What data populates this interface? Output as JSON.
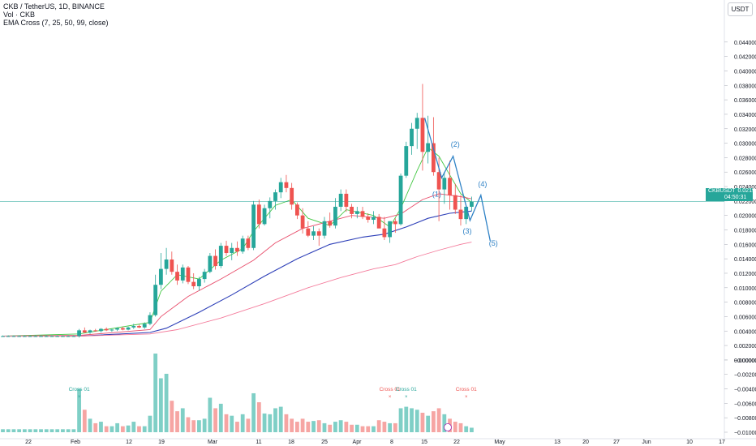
{
  "header": {
    "symbol_line": "CKB / TetherUS, 1D, BINANCE",
    "vol_line": "Vol · CKB",
    "ema_line": "EMA Cross (7, 25, 50, 99, close)"
  },
  "currency_button": "USDT",
  "price_badge": {
    "symbol": "CKBUSDT",
    "price": "0.021912",
    "countdown": "04:50:31"
  },
  "colors": {
    "up": "#26a69a",
    "down": "#ef5350",
    "ema7": "#43c743",
    "ema25": "#e84d6b",
    "ema50": "#2d3fb8",
    "ema99": "#f47b9b",
    "wave": "#2f82c6",
    "current_line": "#26a69a"
  },
  "chart_data": {
    "type": "candlestick",
    "symbol": "CKB / TetherUS",
    "interval": "1D",
    "exchange": "BINANCE",
    "y_axis": {
      "min": -0.01,
      "max": 0.046,
      "ticks": [
        "0.044000",
        "0.042000",
        "0.040000",
        "0.038000",
        "0.036000",
        "0.034000",
        "0.032000",
        "0.030000",
        "0.028000",
        "0.026000",
        "0.024000",
        "0.022000",
        "0.020000",
        "0.018000",
        "0.016000",
        "0.014000",
        "0.012000",
        "0.010000",
        "0.008000",
        "0.006000",
        "0.004000",
        "0.002000",
        "0.000000",
        "−0.000000",
        "−0.002000",
        "−0.004000",
        "−0.006000",
        "−0.008000",
        "−0.010000"
      ]
    },
    "x_axis": {
      "labels": [
        "22",
        "Feb",
        "12",
        "19",
        "Mar",
        "11",
        "18",
        "25",
        "Apr",
        "8",
        "15",
        "22",
        "May",
        "13",
        "20",
        "27",
        "Jun",
        "10",
        "17"
      ]
    },
    "current_price": 0.021912,
    "candles": [
      [
        0.0033,
        0.0034,
        0.0032,
        0.0033
      ],
      [
        0.0033,
        0.0034,
        0.0032,
        0.0033
      ],
      [
        0.0033,
        0.0034,
        0.0032,
        0.0033
      ],
      [
        0.0033,
        0.0034,
        0.0032,
        0.0033
      ],
      [
        0.0033,
        0.0034,
        0.0032,
        0.0033
      ],
      [
        0.0033,
        0.0034,
        0.0032,
        0.0033
      ],
      [
        0.0033,
        0.0034,
        0.0032,
        0.0033
      ],
      [
        0.0033,
        0.0034,
        0.0032,
        0.0033
      ],
      [
        0.0033,
        0.0034,
        0.0032,
        0.0033
      ],
      [
        0.0033,
        0.0034,
        0.0032,
        0.0033
      ],
      [
        0.0033,
        0.0034,
        0.0032,
        0.0033
      ],
      [
        0.0033,
        0.0034,
        0.0032,
        0.0033
      ],
      [
        0.0033,
        0.0034,
        0.0032,
        0.0033
      ],
      [
        0.0033,
        0.0034,
        0.0032,
        0.0033
      ],
      [
        0.0033,
        0.0043,
        0.0031,
        0.0041
      ],
      [
        0.0041,
        0.0045,
        0.0037,
        0.0038
      ],
      [
        0.0038,
        0.0042,
        0.0036,
        0.0041
      ],
      [
        0.0041,
        0.0043,
        0.0039,
        0.004
      ],
      [
        0.004,
        0.0044,
        0.0038,
        0.0043
      ],
      [
        0.0043,
        0.0045,
        0.004,
        0.0041
      ],
      [
        0.0041,
        0.0043,
        0.0039,
        0.0042
      ],
      [
        0.0042,
        0.0045,
        0.004,
        0.0044
      ],
      [
        0.0044,
        0.0046,
        0.0041,
        0.0042
      ],
      [
        0.0042,
        0.0046,
        0.0041,
        0.0045
      ],
      [
        0.0045,
        0.005,
        0.0043,
        0.0047
      ],
      [
        0.0047,
        0.0049,
        0.0044,
        0.0045
      ],
      [
        0.0045,
        0.0052,
        0.0043,
        0.005
      ],
      [
        0.005,
        0.0066,
        0.0048,
        0.0062
      ],
      [
        0.0062,
        0.0118,
        0.006,
        0.0104
      ],
      [
        0.0104,
        0.0148,
        0.0098,
        0.0126
      ],
      [
        0.0126,
        0.0155,
        0.0118,
        0.0139
      ],
      [
        0.0139,
        0.015,
        0.0118,
        0.0122
      ],
      [
        0.0122,
        0.0132,
        0.0104,
        0.011
      ],
      [
        0.011,
        0.0132,
        0.0106,
        0.0128
      ],
      [
        0.0128,
        0.013,
        0.0105,
        0.0108
      ],
      [
        0.0108,
        0.012,
        0.0098,
        0.0102
      ],
      [
        0.0102,
        0.0115,
        0.0096,
        0.0112
      ],
      [
        0.0112,
        0.0126,
        0.0107,
        0.0122
      ],
      [
        0.0122,
        0.0148,
        0.012,
        0.0144
      ],
      [
        0.0144,
        0.0153,
        0.0125,
        0.013
      ],
      [
        0.013,
        0.0162,
        0.0127,
        0.0158
      ],
      [
        0.0158,
        0.0165,
        0.0144,
        0.0148
      ],
      [
        0.0148,
        0.0162,
        0.0138,
        0.0155
      ],
      [
        0.0155,
        0.0164,
        0.0144,
        0.015
      ],
      [
        0.015,
        0.0172,
        0.0147,
        0.0168
      ],
      [
        0.0168,
        0.0172,
        0.0152,
        0.0155
      ],
      [
        0.0155,
        0.022,
        0.0152,
        0.0215
      ],
      [
        0.0215,
        0.0222,
        0.0182,
        0.0188
      ],
      [
        0.0188,
        0.0215,
        0.0186,
        0.021
      ],
      [
        0.021,
        0.0225,
        0.0196,
        0.022
      ],
      [
        0.022,
        0.0236,
        0.0208,
        0.0232
      ],
      [
        0.0232,
        0.0252,
        0.0224,
        0.0246
      ],
      [
        0.0246,
        0.0256,
        0.0232,
        0.0238
      ],
      [
        0.0238,
        0.0245,
        0.0208,
        0.0215
      ],
      [
        0.0215,
        0.0218,
        0.0195,
        0.02
      ],
      [
        0.02,
        0.021,
        0.0175,
        0.0182
      ],
      [
        0.0182,
        0.0192,
        0.017,
        0.0172
      ],
      [
        0.0172,
        0.0185,
        0.0166,
        0.0178
      ],
      [
        0.0178,
        0.0182,
        0.0158,
        0.0172
      ],
      [
        0.0172,
        0.0198,
        0.0168,
        0.0192
      ],
      [
        0.0192,
        0.0204,
        0.0183,
        0.0186
      ],
      [
        0.0186,
        0.0224,
        0.0182,
        0.0212
      ],
      [
        0.0212,
        0.0236,
        0.0206,
        0.023
      ],
      [
        0.023,
        0.0236,
        0.0205,
        0.0212
      ],
      [
        0.0212,
        0.0216,
        0.0196,
        0.0202
      ],
      [
        0.0202,
        0.0212,
        0.0196,
        0.0206
      ],
      [
        0.0206,
        0.0212,
        0.0195,
        0.0198
      ],
      [
        0.0198,
        0.0203,
        0.019,
        0.0194
      ],
      [
        0.0194,
        0.0206,
        0.0188,
        0.0198
      ],
      [
        0.0198,
        0.0202,
        0.0186,
        0.0182
      ],
      [
        0.0182,
        0.0198,
        0.0166,
        0.017
      ],
      [
        0.017,
        0.0192,
        0.0162,
        0.0192
      ],
      [
        0.0192,
        0.0196,
        0.0176,
        0.0188
      ],
      [
        0.0188,
        0.0258,
        0.0186,
        0.0255
      ],
      [
        0.0255,
        0.0302,
        0.0252,
        0.0296
      ],
      [
        0.0296,
        0.0328,
        0.0284,
        0.032
      ],
      [
        0.032,
        0.0342,
        0.0292,
        0.0335
      ],
      [
        0.0335,
        0.0382,
        0.0262,
        0.0288
      ],
      [
        0.0288,
        0.0338,
        0.0272,
        0.03
      ],
      [
        0.03,
        0.0336,
        0.0255,
        0.026
      ],
      [
        0.026,
        0.028,
        0.0192,
        0.0236
      ],
      [
        0.0236,
        0.026,
        0.0216,
        0.0252
      ],
      [
        0.0252,
        0.0276,
        0.0208,
        0.0228
      ],
      [
        0.0228,
        0.0244,
        0.0202,
        0.0208
      ],
      [
        0.0208,
        0.0228,
        0.0186,
        0.0195
      ],
      [
        0.0195,
        0.0213,
        0.0188,
        0.0212
      ],
      [
        0.0212,
        0.0226,
        0.0206,
        0.0219
      ]
    ],
    "volume_scale": {
      "top": "-0.004000",
      "note": "volume bars share the lower price scale"
    },
    "volume": [
      [
        0.0004,
        "u"
      ],
      [
        0.0004,
        "u"
      ],
      [
        0.0004,
        "u"
      ],
      [
        0.0004,
        "u"
      ],
      [
        0.0004,
        "u"
      ],
      [
        0.0004,
        "u"
      ],
      [
        0.0004,
        "u"
      ],
      [
        0.0004,
        "u"
      ],
      [
        0.0004,
        "u"
      ],
      [
        0.0004,
        "u"
      ],
      [
        0.0004,
        "u"
      ],
      [
        0.0004,
        "u"
      ],
      [
        0.0004,
        "u"
      ],
      [
        0.0004,
        "u"
      ],
      [
        0.0058,
        "u"
      ],
      [
        0.003,
        "d"
      ],
      [
        0.0018,
        "u"
      ],
      [
        0.0012,
        "d"
      ],
      [
        0.0014,
        "u"
      ],
      [
        0.0008,
        "d"
      ],
      [
        0.0008,
        "u"
      ],
      [
        0.0012,
        "u"
      ],
      [
        0.0008,
        "d"
      ],
      [
        0.0009,
        "u"
      ],
      [
        0.0014,
        "u"
      ],
      [
        0.0008,
        "d"
      ],
      [
        0.0008,
        "u"
      ],
      [
        0.0022,
        "u"
      ],
      [
        0.0105,
        "u"
      ],
      [
        0.0072,
        "u"
      ],
      [
        0.0078,
        "u"
      ],
      [
        0.0042,
        "d"
      ],
      [
        0.0028,
        "d"
      ],
      [
        0.0032,
        "u"
      ],
      [
        0.002,
        "d"
      ],
      [
        0.0016,
        "d"
      ],
      [
        0.0016,
        "u"
      ],
      [
        0.0018,
        "u"
      ],
      [
        0.0046,
        "u"
      ],
      [
        0.0032,
        "d"
      ],
      [
        0.0038,
        "u"
      ],
      [
        0.0024,
        "d"
      ],
      [
        0.0022,
        "u"
      ],
      [
        0.0014,
        "d"
      ],
      [
        0.0024,
        "u"
      ],
      [
        0.0018,
        "d"
      ],
      [
        0.0052,
        "u"
      ],
      [
        0.004,
        "d"
      ],
      [
        0.0025,
        "u"
      ],
      [
        0.0024,
        "u"
      ],
      [
        0.0032,
        "u"
      ],
      [
        0.0034,
        "u"
      ],
      [
        0.0024,
        "d"
      ],
      [
        0.0018,
        "d"
      ],
      [
        0.0014,
        "d"
      ],
      [
        0.0018,
        "d"
      ],
      [
        0.0014,
        "d"
      ],
      [
        0.0015,
        "u"
      ],
      [
        0.0016,
        "d"
      ],
      [
        0.0012,
        "u"
      ],
      [
        0.001,
        "d"
      ],
      [
        0.0014,
        "u"
      ],
      [
        0.0016,
        "u"
      ],
      [
        0.0014,
        "d"
      ],
      [
        0.001,
        "d"
      ],
      [
        0.001,
        "u"
      ],
      [
        0.0008,
        "d"
      ],
      [
        0.0008,
        "d"
      ],
      [
        0.0008,
        "u"
      ],
      [
        0.0016,
        "d"
      ],
      [
        0.0014,
        "d"
      ],
      [
        0.0012,
        "u"
      ],
      [
        0.0012,
        "d"
      ],
      [
        0.0032,
        "u"
      ],
      [
        0.0034,
        "u"
      ],
      [
        0.0032,
        "u"
      ],
      [
        0.003,
        "u"
      ],
      [
        0.0026,
        "d"
      ],
      [
        0.0022,
        "u"
      ],
      [
        0.0028,
        "d"
      ],
      [
        0.0032,
        "d"
      ],
      [
        0.0024,
        "u"
      ],
      [
        0.0018,
        "d"
      ],
      [
        0.0014,
        "d"
      ],
      [
        0.0012,
        "d"
      ],
      [
        0.0008,
        "u"
      ],
      [
        0.0006,
        "u"
      ]
    ],
    "ema_series": [
      {
        "name": "EMA 7",
        "points": [
          [
            0,
            0.0033
          ],
          [
            14,
            0.0036
          ],
          [
            27,
            0.0052
          ],
          [
            29,
            0.0095
          ],
          [
            32,
            0.0118
          ],
          [
            36,
            0.0112
          ],
          [
            40,
            0.0138
          ],
          [
            44,
            0.0154
          ],
          [
            46,
            0.0178
          ],
          [
            50,
            0.0214
          ],
          [
            53,
            0.0222
          ],
          [
            56,
            0.0196
          ],
          [
            60,
            0.0186
          ],
          [
            63,
            0.0208
          ],
          [
            68,
            0.02
          ],
          [
            71,
            0.0184
          ],
          [
            73,
            0.021
          ],
          [
            76,
            0.0262
          ],
          [
            78,
            0.0294
          ],
          [
            80,
            0.0282
          ],
          [
            82,
            0.0256
          ],
          [
            84,
            0.023
          ],
          [
            86,
            0.0218
          ]
        ]
      },
      {
        "name": "EMA 25",
        "points": [
          [
            0,
            0.0033
          ],
          [
            14,
            0.0034
          ],
          [
            27,
            0.0042
          ],
          [
            29,
            0.006
          ],
          [
            34,
            0.0088
          ],
          [
            40,
            0.0112
          ],
          [
            46,
            0.0138
          ],
          [
            50,
            0.0162
          ],
          [
            55,
            0.0182
          ],
          [
            60,
            0.0192
          ],
          [
            64,
            0.02
          ],
          [
            70,
            0.0196
          ],
          [
            73,
            0.0202
          ],
          [
            77,
            0.0222
          ],
          [
            80,
            0.023
          ],
          [
            84,
            0.0226
          ],
          [
            86,
            0.0223
          ]
        ]
      },
      {
        "name": "EMA 50",
        "points": [
          [
            0,
            0.0033
          ],
          [
            14,
            0.0033
          ],
          [
            27,
            0.0038
          ],
          [
            30,
            0.0044
          ],
          [
            36,
            0.0066
          ],
          [
            42,
            0.009
          ],
          [
            48,
            0.0116
          ],
          [
            54,
            0.014
          ],
          [
            60,
            0.016
          ],
          [
            66,
            0.017
          ],
          [
            70,
            0.0174
          ],
          [
            74,
            0.0184
          ],
          [
            78,
            0.0196
          ],
          [
            82,
            0.0203
          ],
          [
            86,
            0.0206
          ]
        ]
      },
      {
        "name": "EMA 99",
        "points": [
          [
            0,
            0.0033
          ],
          [
            14,
            0.0033
          ],
          [
            27,
            0.0036
          ],
          [
            32,
            0.0042
          ],
          [
            40,
            0.0058
          ],
          [
            48,
            0.0078
          ],
          [
            56,
            0.01
          ],
          [
            62,
            0.0114
          ],
          [
            68,
            0.0126
          ],
          [
            72,
            0.0132
          ],
          [
            76,
            0.0143
          ],
          [
            80,
            0.0152
          ],
          [
            84,
            0.016
          ],
          [
            86,
            0.0163
          ]
        ]
      }
    ],
    "wave_path": [
      [
        77.4,
        0.0335
      ],
      [
        80.5,
        0.0252
      ],
      [
        82.6,
        0.0282
      ],
      [
        85.7,
        0.0193
      ],
      [
        87.7,
        0.0228
      ],
      [
        89.4,
        0.0165
      ]
    ],
    "wave_labels": [
      {
        "text": "(1)",
        "x": 79.6,
        "y": 0.0226
      },
      {
        "text": "(2)",
        "x": 83.0,
        "y": 0.0295
      },
      {
        "text": "(3)",
        "x": 85.2,
        "y": 0.0175
      },
      {
        "text": "(4)",
        "x": 88.0,
        "y": 0.024
      },
      {
        "text": "(5)",
        "x": 90.0,
        "y": 0.0158
      }
    ],
    "cross_markers": [
      {
        "text": "Cross 01",
        "color": "up",
        "x": 14
      },
      {
        "text": "Cross 01",
        "color": "down",
        "x": 71
      },
      {
        "text": "Cross 01",
        "color": "up",
        "x": 74
      },
      {
        "text": "Cross 01",
        "color": "down",
        "x": 85
      }
    ]
  }
}
